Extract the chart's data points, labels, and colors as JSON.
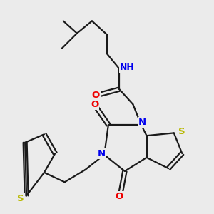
{
  "bg_color": "#ebebeb",
  "bond_color": "#1a1a1a",
  "bond_width": 1.6,
  "atom_colors": {
    "N": "#0000ee",
    "O": "#ee0000",
    "S": "#b8b800",
    "H": "#008080",
    "C": "#1a1a1a"
  },
  "font_size": 9.5
}
